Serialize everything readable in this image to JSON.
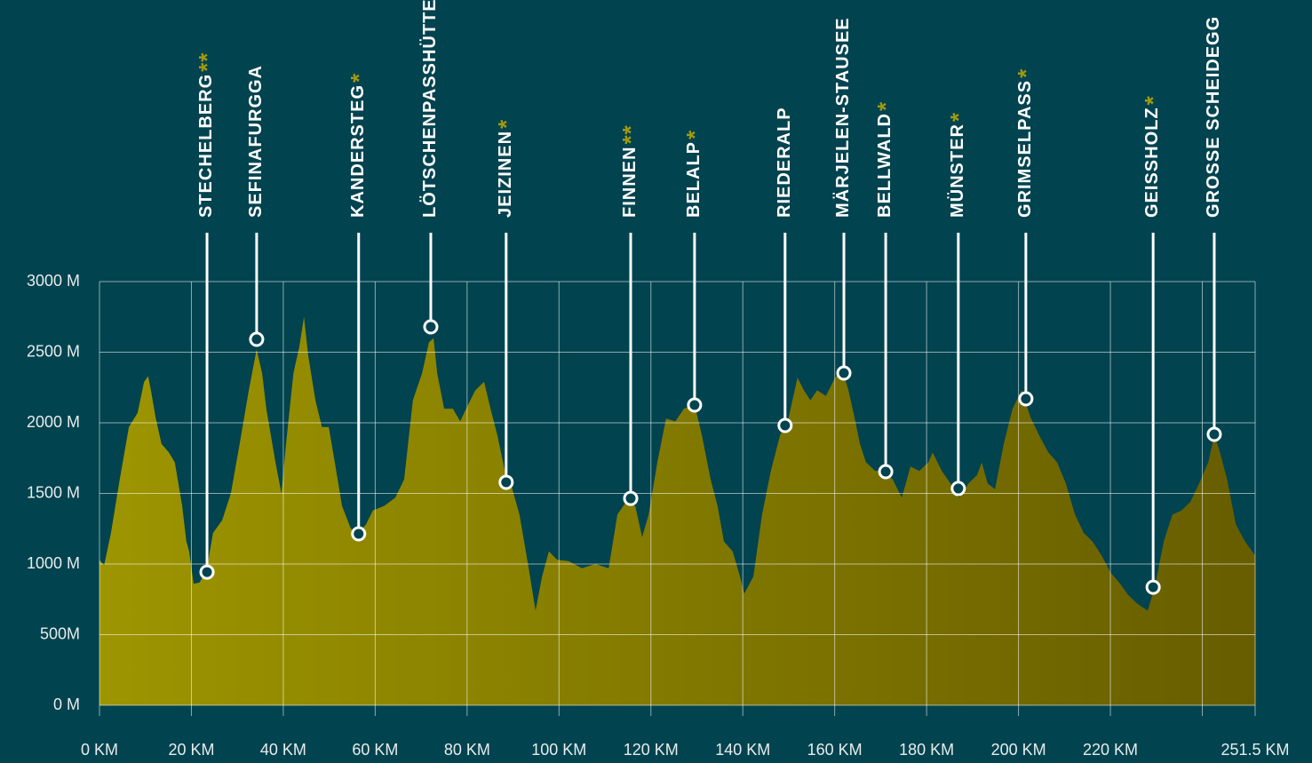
{
  "chart_data": {
    "type": "area",
    "x": [
      0,
      1.0,
      2.5,
      4.4,
      6.4,
      8.3,
      9.7,
      10.6,
      11.2,
      12.2,
      13.5,
      15.1,
      16.4,
      18.0,
      18.9,
      19.5,
      20.5,
      21.8,
      23.4,
      24.7,
      26.7,
      28.6,
      30.5,
      32.5,
      34.2,
      35.4,
      36.3,
      38.3,
      39.6,
      40.6,
      42.2,
      43.5,
      44.5,
      45.4,
      47.0,
      48.4,
      49.9,
      51.2,
      52.8,
      54.7,
      56.4,
      58.0,
      59.5,
      61.9,
      64.4,
      66.3,
      68.2,
      70.2,
      71.7,
      72.7,
      73.5,
      75.0,
      76.9,
      78.5,
      79.8,
      81.8,
      83.7,
      85.1,
      86.6,
      88.2,
      89.5,
      91.4,
      93.4,
      94.9,
      96.3,
      97.8,
      99.6,
      102.1,
      105.0,
      107.9,
      110.8,
      112.7,
      114.6,
      116.6,
      118.1,
      119.5,
      121.4,
      123.3,
      125.3,
      127.2,
      129.5,
      131.1,
      133.0,
      134.5,
      135.9,
      137.8,
      139.4,
      140.3,
      142.3,
      144.2,
      146.1,
      148.1,
      150.0,
      151.9,
      153.3,
      154.7,
      156.2,
      158.1,
      160.1,
      161.6,
      163.0,
      164.3,
      165.5,
      166.8,
      168.8,
      170.7,
      172.6,
      174.6,
      176.5,
      178.4,
      180.4,
      181.3,
      183.3,
      185.2,
      187.1,
      189.1,
      191.0,
      192.0,
      193.3,
      194.9,
      196.8,
      198.7,
      200.7,
      202.6,
      204.5,
      206.5,
      208.4,
      210.3,
      212.3,
      214.2,
      216.1,
      218.1,
      220.0,
      221.9,
      223.9,
      225.8,
      228.1,
      229.7,
      231.6,
      233.5,
      235.5,
      237.4,
      239.3,
      241.3,
      242.6,
      243.6,
      245.4,
      247.3,
      249.3,
      251.5
    ],
    "values": [
      1030,
      990,
      1220,
      1600,
      1970,
      2070,
      2290,
      2330,
      2230,
      2040,
      1850,
      1790,
      1720,
      1410,
      1160,
      1090,
      860,
      870,
      970,
      1220,
      1310,
      1500,
      1850,
      2230,
      2520,
      2350,
      2100,
      1720,
      1500,
      1850,
      2350,
      2540,
      2750,
      2480,
      2160,
      1970,
      1970,
      1720,
      1410,
      1250,
      1220,
      1280,
      1380,
      1410,
      1470,
      1600,
      2160,
      2350,
      2570,
      2600,
      2350,
      2100,
      2100,
      2010,
      2100,
      2230,
      2290,
      2100,
      1910,
      1660,
      1570,
      1350,
      970,
      670,
      910,
      1090,
      1030,
      1020,
      970,
      1000,
      970,
      1350,
      1440,
      1410,
      1190,
      1350,
      1720,
      2030,
      2010,
      2100,
      2130,
      1910,
      1600,
      1410,
      1160,
      1090,
      910,
      790,
      910,
      1350,
      1660,
      1910,
      2040,
      2320,
      2230,
      2160,
      2230,
      2190,
      2320,
      2380,
      2230,
      2040,
      1850,
      1720,
      1660,
      1660,
      1600,
      1470,
      1690,
      1660,
      1720,
      1790,
      1660,
      1570,
      1470,
      1570,
      1630,
      1720,
      1570,
      1530,
      1850,
      2100,
      2230,
      2040,
      1910,
      1790,
      1720,
      1570,
      1350,
      1220,
      1160,
      1060,
      940,
      870,
      780,
      720,
      670,
      840,
      1160,
      1350,
      1380,
      1440,
      1570,
      1720,
      1910,
      1820,
      1600,
      1280,
      1160,
      1060
    ],
    "colors": [
      "#9d9500",
      "#675d00"
    ],
    "xlim": [
      0,
      251.5
    ],
    "xticks": [
      {
        "value": 0,
        "label": "0 KM"
      },
      {
        "value": 20,
        "label": "20 KM"
      },
      {
        "value": 40,
        "label": "40 KM"
      },
      {
        "value": 60,
        "label": "60 KM"
      },
      {
        "value": 80,
        "label": "80 KM"
      },
      {
        "value": 100,
        "label": "100 KM"
      },
      {
        "value": 120,
        "label": "120 KM"
      },
      {
        "value": 140,
        "label": "140 KM"
      },
      {
        "value": 160,
        "label": "160 KM"
      },
      {
        "value": 180,
        "label": "180 KM"
      },
      {
        "value": 200,
        "label": "200 KM"
      },
      {
        "value": 220,
        "label": "220 KM"
      },
      {
        "value": 240,
        "label": null
      },
      {
        "value": 251.5,
        "label": "251.5 KM"
      }
    ],
    "ylim": [
      0,
      3000
    ],
    "yticks": [
      {
        "value": 0,
        "label": "0 M"
      },
      {
        "value": 500,
        "label": "500M"
      },
      {
        "value": 1000,
        "label": "1000 M"
      },
      {
        "value": 1500,
        "label": "1500 M"
      },
      {
        "value": 2000,
        "label": "2000 M"
      },
      {
        "value": 2500,
        "label": "2500 M"
      },
      {
        "value": 3000,
        "label": "3000 M"
      }
    ],
    "grid": true,
    "waypoints": [
      {
        "name": "STECHELBERG",
        "stars": "**",
        "x": 23.4,
        "y": 943
      },
      {
        "name": "SEFINAFURGGA",
        "x": 34.2,
        "y": 2591
      },
      {
        "name": "KANDERSTEG",
        "stars": "*",
        "x": 56.4,
        "y": 1214
      },
      {
        "name": "LÖTSCHENPASSHÜTTE",
        "x": 72.1,
        "y": 2679
      },
      {
        "name": "JEIZINEN",
        "stars": "*",
        "x": 88.5,
        "y": 1579
      },
      {
        "name": "FINNEN",
        "stars": "**",
        "x": 115.6,
        "y": 1465
      },
      {
        "name": "BELALP",
        "stars": "*",
        "x": 129.5,
        "y": 2126
      },
      {
        "name": "RIEDERALP",
        "x": 149.2,
        "y": 1981
      },
      {
        "name": "MÄRJELEN-STAUSEE",
        "x": 162.0,
        "y": 2352
      },
      {
        "name": "BELLWALD",
        "stars": "*",
        "x": 171.1,
        "y": 1654
      },
      {
        "name": "MÜNSTER",
        "stars": "*",
        "x": 186.9,
        "y": 1535
      },
      {
        "name": "GRIMSELPASS",
        "stars": "*",
        "x": 201.6,
        "y": 2170
      },
      {
        "name": "GEISSHOLZ",
        "stars": "*",
        "x": 229.3,
        "y": 836
      },
      {
        "name": "GROSSE SCHEIDEGG",
        "x": 242.6,
        "y": 1918
      }
    ]
  }
}
